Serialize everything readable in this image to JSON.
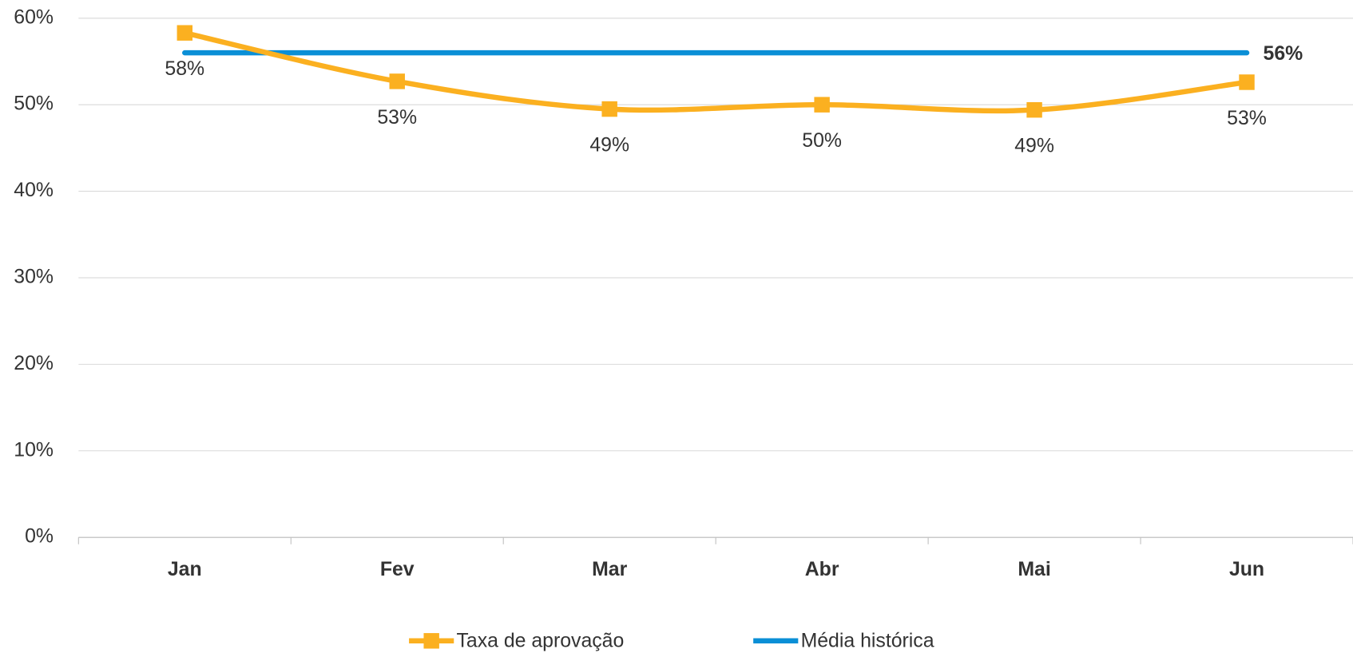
{
  "chart_data": {
    "type": "line",
    "categories": [
      "Jan",
      "Fev",
      "Mar",
      "Abr",
      "Mai",
      "Jun"
    ],
    "series": [
      {
        "name": "Taxa de aprovação",
        "color": "#fbb020",
        "values": [
          58.3,
          52.7,
          49.5,
          50.0,
          49.4,
          52.6
        ],
        "value_labels": [
          "58%",
          "53%",
          "49%",
          "50%",
          "49%",
          "53%"
        ],
        "marker": "square",
        "smooth": true
      },
      {
        "name": "Média histórica",
        "color": "#0a8fd6",
        "values": [
          56,
          56,
          56,
          56,
          56,
          56
        ],
        "value_labels": [
          null,
          null,
          null,
          null,
          null,
          "56%"
        ],
        "label_color": "#17b2d9"
      }
    ],
    "ylim": [
      0,
      60
    ],
    "yticks": [
      {
        "value": 0,
        "label": "0%"
      },
      {
        "value": 10,
        "label": "10%"
      },
      {
        "value": 20,
        "label": "20%"
      },
      {
        "value": 30,
        "label": "30%"
      },
      {
        "value": 40,
        "label": "40%"
      },
      {
        "value": 50,
        "label": "50%"
      },
      {
        "value": 60,
        "label": "60%"
      }
    ],
    "grid": true,
    "legend": "bottom"
  }
}
